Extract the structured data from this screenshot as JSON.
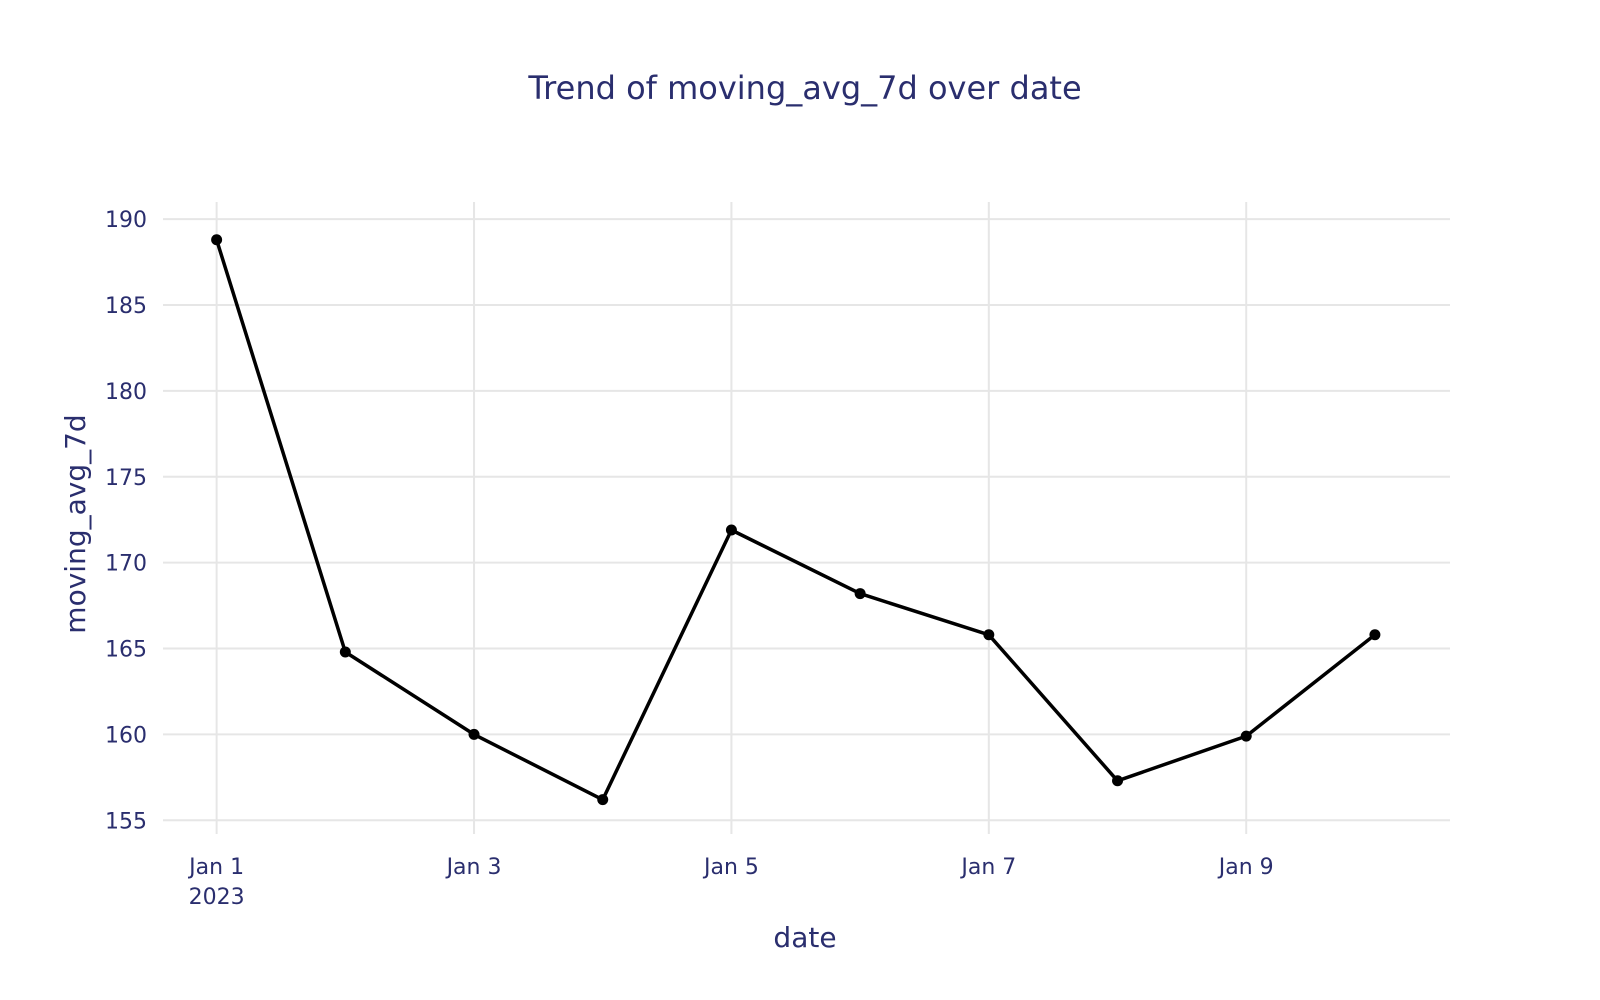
{
  "chart_data": {
    "type": "line",
    "title": "Trend of moving_avg_7d over date",
    "xlabel": "date",
    "ylabel": "moving_avg_7d",
    "x": [
      "2023-01-01",
      "2023-01-02",
      "2023-01-03",
      "2023-01-04",
      "2023-01-05",
      "2023-01-06",
      "2023-01-07",
      "2023-01-08",
      "2023-01-09",
      "2023-01-10"
    ],
    "series": [
      {
        "values": [
          188.8,
          164.8,
          160.0,
          156.2,
          171.9,
          168.2,
          165.8,
          157.3,
          159.9,
          165.8
        ]
      }
    ],
    "xticks": [
      {
        "date": "2023-01-01",
        "label": "Jan 1",
        "sublabel": "2023"
      },
      {
        "date": "2023-01-03",
        "label": "Jan 3",
        "sublabel": ""
      },
      {
        "date": "2023-01-05",
        "label": "Jan 5",
        "sublabel": ""
      },
      {
        "date": "2023-01-07",
        "label": "Jan 7",
        "sublabel": ""
      },
      {
        "date": "2023-01-09",
        "label": "Jan 9",
        "sublabel": ""
      }
    ],
    "yticks": [
      155,
      160,
      165,
      170,
      175,
      180,
      185,
      190
    ],
    "xlim": [
      "2022-12-31T14:00",
      "2023-01-10T14:00"
    ],
    "ylim": [
      154.2,
      191
    ],
    "grid": true,
    "legend": "none",
    "line_color": "#000000",
    "text_color": "#2a2e6e",
    "grid_color": "#e6e6e6"
  }
}
